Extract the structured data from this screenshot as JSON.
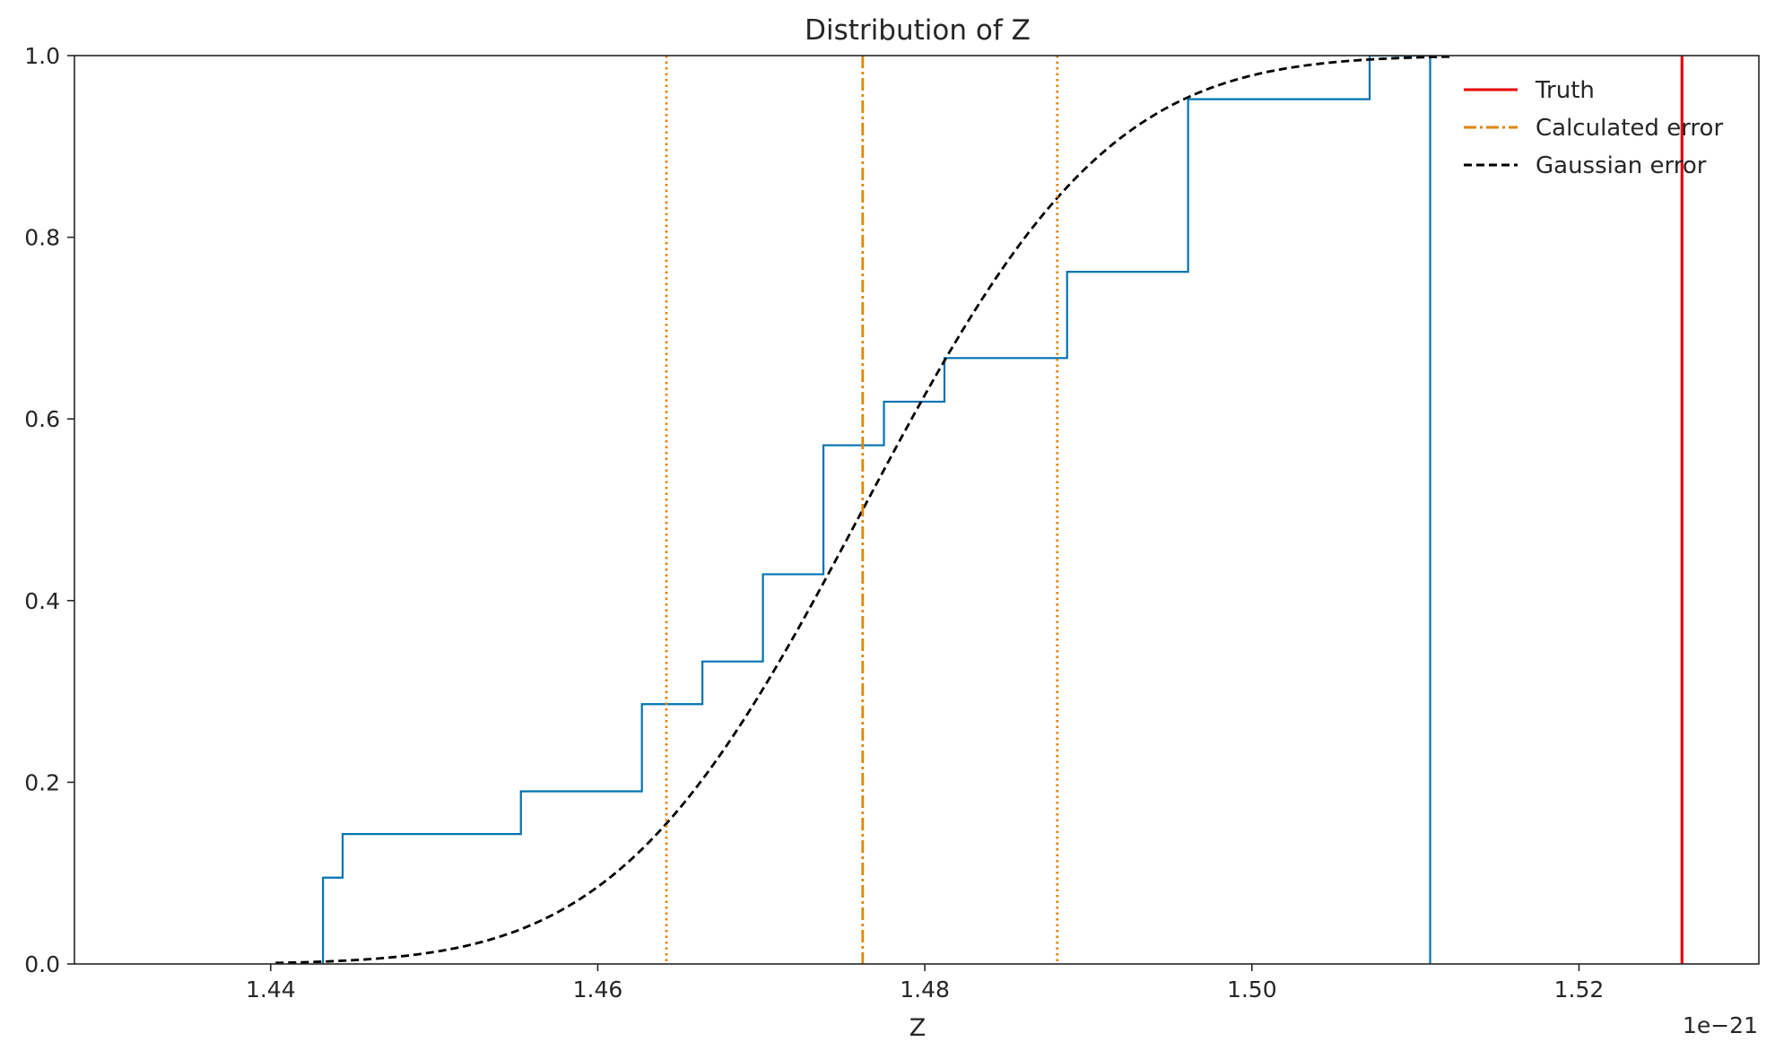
{
  "chart_data": {
    "type": "line",
    "title": "Distribution of Z",
    "xlabel": "Z",
    "ylabel": "",
    "x_offset_label": "1e−21",
    "xlim": [
      1.428,
      1.531
    ],
    "ylim": [
      0.0,
      1.0
    ],
    "xticks": [
      1.44,
      1.46,
      1.48,
      1.5,
      1.52
    ],
    "xtick_labels": [
      "1.44",
      "1.46",
      "1.48",
      "1.50",
      "1.52"
    ],
    "yticks": [
      0.0,
      0.2,
      0.4,
      0.6,
      0.8,
      1.0
    ],
    "ytick_labels": [
      "0.0",
      "0.2",
      "0.4",
      "0.6",
      "0.8",
      "1.0"
    ],
    "grid": false,
    "legend_position": "top-right",
    "legend": [
      {
        "label": "Truth",
        "color": "#e8000b",
        "style": "solid"
      },
      {
        "label": "Calculated error",
        "color": "#e0860b",
        "style": "dashdot"
      },
      {
        "label": "Gaussian error",
        "color": "#000000",
        "style": "dashed"
      }
    ],
    "ecdf": {
      "color": "#0173b2",
      "x": [
        1.4432,
        1.4444,
        1.4553,
        1.4627,
        1.4664,
        1.4701,
        1.4738,
        1.4775,
        1.4812,
        1.4887,
        1.4961,
        1.5072,
        1.5109
      ],
      "y": [
        0.095,
        0.143,
        0.19,
        0.286,
        0.333,
        0.429,
        0.571,
        0.619,
        0.667,
        0.762,
        0.952,
        1.0,
        1.0
      ]
    },
    "gaussian_cdf": {
      "color": "#000000",
      "mean": 1.4762,
      "sigma": 0.0118,
      "x_range": [
        1.4403,
        1.5121
      ]
    },
    "calculated_error": {
      "color": "#e0860b",
      "center": 1.4762,
      "lower": 1.4642,
      "upper": 1.4881
    },
    "truth": {
      "color": "#e8000b",
      "value": 1.5263
    }
  }
}
